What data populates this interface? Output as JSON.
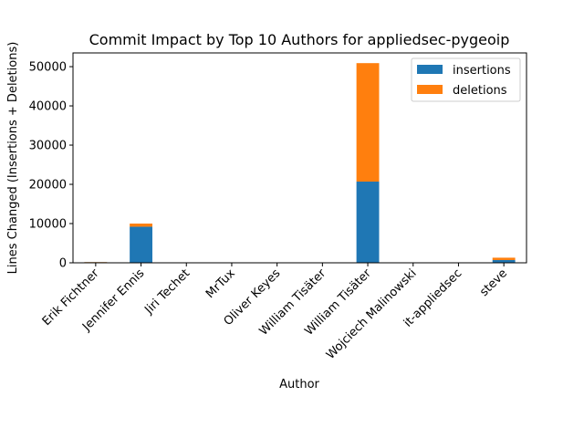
{
  "chart_data": {
    "type": "bar",
    "stacked": true,
    "title": "Commit Impact by Top 10 Authors for appliedsec-pygeoip",
    "xlabel": "Author",
    "ylabel": "Lines Changed (Insertions + Deletions)",
    "ylim": [
      0,
      53500
    ],
    "yticks": [
      0,
      10000,
      20000,
      30000,
      40000,
      50000
    ],
    "grid": false,
    "legend_position": "top-right",
    "categories": [
      "Erik Fichtner",
      "Jennifer Ennis",
      "Jiri Techet",
      "MrTux",
      "Oliver Keyes",
      "William Tisäter",
      "William Tisäter",
      "Wojciech Malinowski",
      "it-appliedsec",
      "steve"
    ],
    "series": [
      {
        "name": "insertions",
        "color": "#1f77b4",
        "values": [
          150,
          9200,
          10,
          5,
          10,
          5,
          20700,
          20,
          10,
          700
        ]
      },
      {
        "name": "deletions",
        "color": "#ff7f0e",
        "values": [
          50,
          800,
          5,
          5,
          5,
          5,
          30200,
          10,
          5,
          600
        ]
      }
    ]
  }
}
